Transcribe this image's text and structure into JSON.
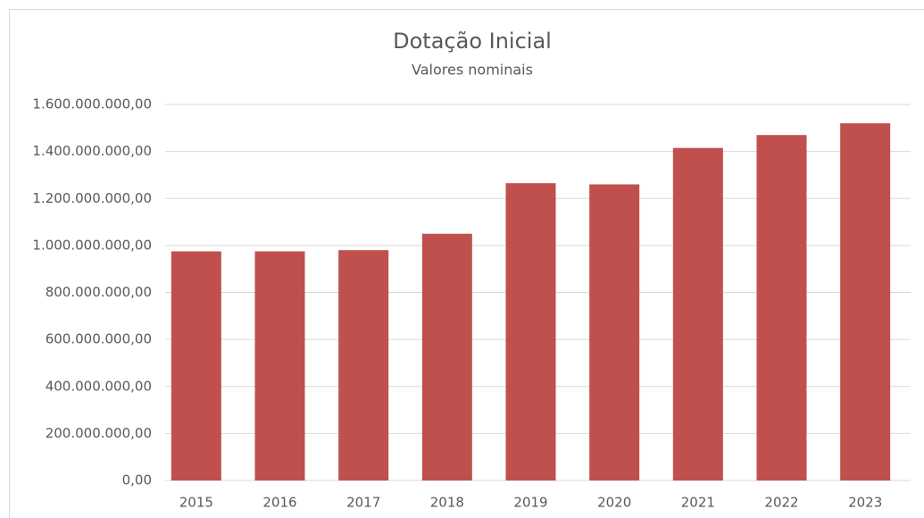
{
  "chart_data": {
    "type": "bar",
    "title": "Dotação Inicial",
    "subtitle": "Valores nominais",
    "categories": [
      "2015",
      "2016",
      "2017",
      "2018",
      "2019",
      "2020",
      "2021",
      "2022",
      "2023"
    ],
    "values": [
      975000000,
      975000000,
      980000000,
      1050000000,
      1265000000,
      1260000000,
      1415000000,
      1470000000,
      1520000000
    ],
    "color": "#c0504d",
    "ylim": [
      0,
      1600000000
    ],
    "yticks": [
      {
        "value": 0,
        "label": "0,00"
      },
      {
        "value": 200000000,
        "label": "200.000.000,00"
      },
      {
        "value": 400000000,
        "label": "400.000.000,00"
      },
      {
        "value": 600000000,
        "label": "600.000.000,00"
      },
      {
        "value": 800000000,
        "label": "800.000.000,00"
      },
      {
        "value": 1000000000,
        "label": "1.000.000.000,00"
      },
      {
        "value": 1200000000,
        "label": "1.200.000.000,00"
      },
      {
        "value": 1400000000,
        "label": "1.400.000.000,00"
      },
      {
        "value": 1600000000,
        "label": "1.600.000.000,00"
      }
    ],
    "grid": true
  }
}
